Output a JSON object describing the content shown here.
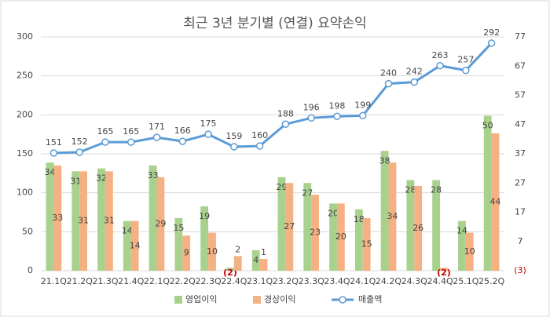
{
  "chart_data": {
    "type": "bar_line",
    "title": "최근 3년 분기별 (연결) 요약손익",
    "categories": [
      "21.1Q",
      "21.2Q",
      "21.3Q",
      "21.4Q",
      "22.1Q",
      "22.2Q",
      "22.3Q",
      "22.4Q",
      "23.1Q",
      "23.2Q",
      "23.3Q",
      "23.4Q",
      "24.1Q",
      "24.2Q",
      "24.3Q",
      "24.4Q",
      "25.1Q",
      "25.2Q"
    ],
    "series": [
      {
        "name": "영업이익",
        "color": "#a9d18e",
        "axis": "y2",
        "values": [
          34,
          31,
          32,
          14,
          33,
          15,
          19,
          -2,
          4,
          29,
          27,
          20,
          18,
          38,
          28,
          28,
          14,
          50
        ],
        "value_labels": [
          "34",
          "31",
          "32",
          "14",
          "33",
          "15",
          "19",
          "(2)",
          "4",
          "29",
          "27",
          "20",
          "18",
          "38",
          "28",
          "28",
          "14",
          "50"
        ]
      },
      {
        "name": "경상이익",
        "color": "#f4b183",
        "axis": "y2",
        "values": [
          33,
          31,
          31,
          14,
          29,
          9,
          10,
          2,
          1,
          27,
          23,
          20,
          15,
          34,
          26,
          -2,
          10,
          44
        ],
        "value_labels": [
          "33",
          "31",
          "31",
          "14",
          "29",
          "9",
          "10",
          "2",
          "1",
          "27",
          "23",
          "20",
          "15",
          "34",
          "26",
          "(2)",
          "10",
          "44"
        ]
      },
      {
        "name": "매출액",
        "color": "#5b9bd5",
        "type": "line",
        "values": [
          151,
          152,
          165,
          165,
          171,
          166,
          175,
          159,
          160,
          188,
          196,
          198,
          199,
          240,
          242,
          263,
          257,
          292
        ]
      }
    ],
    "ylim": [
      0,
      300
    ],
    "yticks": [
      0,
      50,
      100,
      150,
      200,
      250,
      300
    ],
    "y2lim": [
      -3,
      77
    ],
    "y2ticks": [
      {
        "value": -3,
        "label": "(3)"
      },
      7,
      17,
      27,
      37,
      47,
      57,
      67,
      77
    ],
    "grid": true,
    "legend": "bottom"
  }
}
